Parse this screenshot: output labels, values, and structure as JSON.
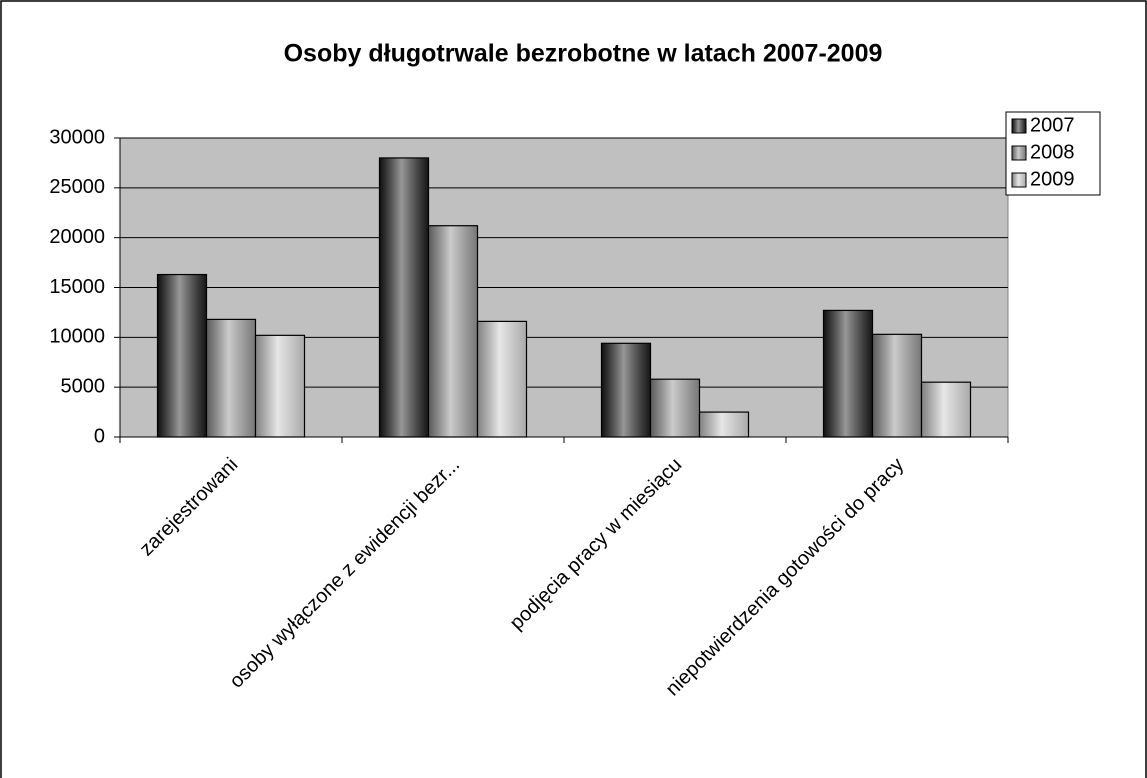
{
  "chart_data": {
    "type": "bar",
    "title": "Osoby długotrwale bezrobotne w latach 2007-2009",
    "categories": [
      "zarejestrowani",
      "osoby wyłączone z ewidencji bezr...",
      "podjęcia pracy w miesiącu",
      "niepotwierdzenia gotowości do pracy"
    ],
    "series": [
      {
        "name": "2007",
        "color": "#1a1a1a",
        "values": [
          16300,
          28000,
          9400,
          12700
        ]
      },
      {
        "name": "2008",
        "color": "#8c8c8c",
        "values": [
          11800,
          21200,
          5800,
          10300
        ]
      },
      {
        "name": "2009",
        "color": "#c8c8c8",
        "values": [
          10200,
          11600,
          2500,
          5500
        ]
      }
    ],
    "ylim": [
      0,
      30000
    ],
    "yticks": [
      0,
      5000,
      10000,
      15000,
      20000,
      25000,
      30000
    ],
    "grid": true,
    "legend": "right"
  }
}
